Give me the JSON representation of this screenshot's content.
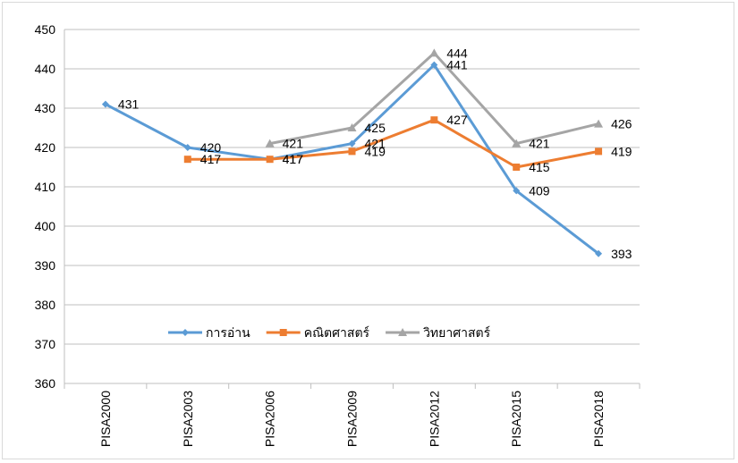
{
  "chart_data": {
    "type": "line",
    "categories": [
      "PISA2000",
      "PISA2003",
      "PISA2006",
      "PISA2009",
      "PISA2012",
      "PISA2015",
      "PISA2018"
    ],
    "series": [
      {
        "name": "การอ่าน",
        "color": "#5b9bd5",
        "marker": "diamond",
        "values": [
          431,
          420,
          417,
          421,
          441,
          409,
          393
        ]
      },
      {
        "name": "คณิตศาสตร์",
        "color": "#ed7d31",
        "marker": "square",
        "values": [
          null,
          417,
          417,
          419,
          427,
          415,
          419
        ]
      },
      {
        "name": "วิทยาศาสตร์",
        "color": "#a5a5a5",
        "marker": "triangle",
        "values": [
          null,
          null,
          421,
          425,
          444,
          421,
          426
        ]
      }
    ],
    "ylim": [
      360,
      450
    ],
    "yticks": [
      360,
      370,
      380,
      390,
      400,
      410,
      420,
      430,
      440,
      450
    ],
    "grid": true,
    "legend_position": "inside-bottom"
  }
}
